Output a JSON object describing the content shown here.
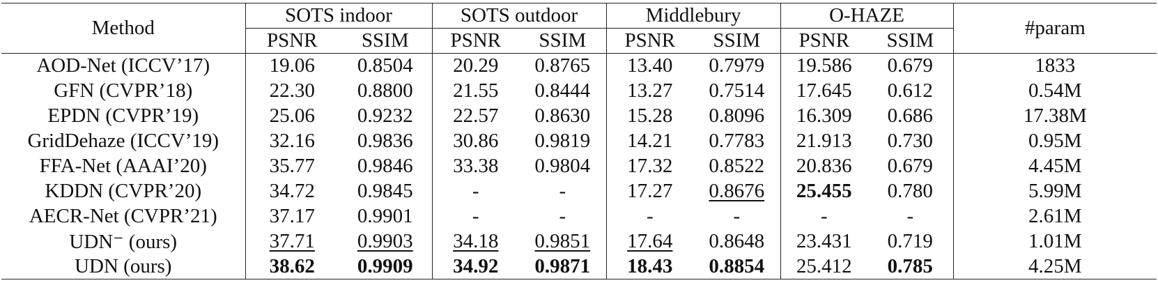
{
  "table": {
    "header": {
      "method": "Method",
      "groups": [
        "SOTS indoor",
        "SOTS outdoor",
        "Middlebury",
        "O-HAZE"
      ],
      "param": "#param",
      "metrics": [
        "PSNR",
        "SSIM",
        "PSNR",
        "SSIM",
        "PSNR",
        "SSIM",
        "PSNR",
        "SSIM"
      ]
    },
    "rows": [
      [
        "AOD-Net (ICCV’17)",
        "19.06",
        "0.8504",
        "20.29",
        "0.8765",
        "13.40",
        "0.7979",
        "19.586",
        "0.679",
        "1833"
      ],
      [
        "GFN (CVPR’18)",
        "22.30",
        "0.8800",
        "21.55",
        "0.8444",
        "13.27",
        "0.7514",
        "17.645",
        "0.612",
        "0.54M"
      ],
      [
        "EPDN (CVPR’19)",
        "25.06",
        "0.9232",
        "22.57",
        "0.8630",
        "15.28",
        "0.8096",
        "16.309",
        "0.686",
        "17.38M"
      ],
      [
        "GridDehaze (ICCV’19)",
        "32.16",
        "0.9836",
        "30.86",
        "0.9819",
        "14.21",
        "0.7783",
        "21.913",
        "0.730",
        "0.95M"
      ],
      [
        "FFA-Net (AAAI’20)",
        "35.77",
        "0.9846",
        "33.38",
        "0.9804",
        "17.32",
        "0.8522",
        "20.836",
        "0.679",
        "4.45M"
      ],
      [
        "KDDN (CVPR’20)",
        "34.72",
        "0.9845",
        "-",
        "-",
        "17.27",
        "0.8676",
        "25.455",
        "0.780",
        "5.99M"
      ],
      [
        "AECR-Net (CVPR’21)",
        "37.17",
        "0.9901",
        "-",
        "-",
        "-",
        "-",
        "-",
        "-",
        "2.61M"
      ],
      [
        "UDN⁻ (ours)",
        "37.71",
        "0.9903",
        "34.18",
        "0.9851",
        "17.64",
        "0.8648",
        "23.431",
        "0.719",
        "1.01M"
      ],
      [
        "UDN (ours)",
        "38.62",
        "0.9909",
        "34.92",
        "0.9871",
        "18.43",
        "0.8854",
        "25.412",
        "0.785",
        "4.25M"
      ]
    ]
  }
}
